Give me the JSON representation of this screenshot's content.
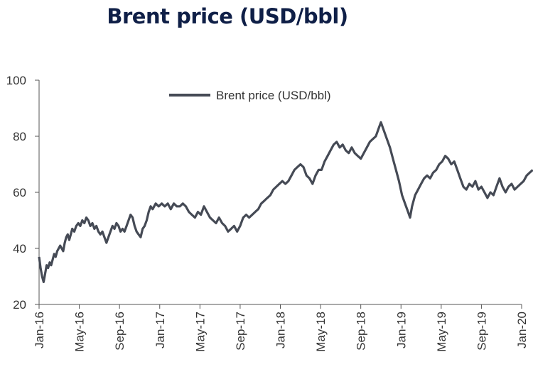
{
  "chart_data": {
    "type": "line",
    "title": "Brent price (USD/bbl)",
    "ylim": [
      20,
      100
    ],
    "yticks": [
      20,
      40,
      60,
      80,
      100
    ],
    "xticks": [
      "Jan-16",
      "May-16",
      "Sep-16",
      "Jan-17",
      "May-17",
      "Sep-17",
      "Jan-18",
      "May-18",
      "Sep-18",
      "Jan-19",
      "May-19",
      "Sep-19",
      "Jan-20"
    ],
    "legend_position": "top-center",
    "grid": false,
    "line_color": "#454a55",
    "series": [
      {
        "name": "Brent price (USD/bbl)",
        "x_unit": "months since Jan-16",
        "points": [
          [
            0.0,
            37
          ],
          [
            0.15,
            33
          ],
          [
            0.3,
            30
          ],
          [
            0.45,
            28
          ],
          [
            0.6,
            31
          ],
          [
            0.75,
            34
          ],
          [
            0.9,
            33
          ],
          [
            1.05,
            35
          ],
          [
            1.2,
            34
          ],
          [
            1.35,
            36
          ],
          [
            1.5,
            38
          ],
          [
            1.65,
            37
          ],
          [
            1.8,
            39
          ],
          [
            1.95,
            40
          ],
          [
            2.1,
            41
          ],
          [
            2.25,
            40
          ],
          [
            2.4,
            39
          ],
          [
            2.55,
            42
          ],
          [
            2.7,
            44
          ],
          [
            2.85,
            45
          ],
          [
            3.0,
            43
          ],
          [
            3.15,
            45
          ],
          [
            3.3,
            47
          ],
          [
            3.5,
            46
          ],
          [
            3.7,
            48
          ],
          [
            3.9,
            49
          ],
          [
            4.1,
            48
          ],
          [
            4.3,
            50
          ],
          [
            4.5,
            49
          ],
          [
            4.7,
            51
          ],
          [
            4.9,
            50
          ],
          [
            5.1,
            48
          ],
          [
            5.3,
            49
          ],
          [
            5.5,
            47
          ],
          [
            5.7,
            48
          ],
          [
            5.9,
            46
          ],
          [
            6.1,
            45
          ],
          [
            6.3,
            46
          ],
          [
            6.5,
            44
          ],
          [
            6.7,
            42
          ],
          [
            6.9,
            44
          ],
          [
            7.1,
            46
          ],
          [
            7.3,
            48
          ],
          [
            7.5,
            47
          ],
          [
            7.7,
            49
          ],
          [
            7.9,
            48
          ],
          [
            8.1,
            46
          ],
          [
            8.3,
            47
          ],
          [
            8.5,
            46
          ],
          [
            8.7,
            48
          ],
          [
            8.9,
            50
          ],
          [
            9.1,
            52
          ],
          [
            9.3,
            51
          ],
          [
            9.5,
            48
          ],
          [
            9.7,
            46
          ],
          [
            9.9,
            45
          ],
          [
            10.1,
            44
          ],
          [
            10.3,
            47
          ],
          [
            10.5,
            48
          ],
          [
            10.7,
            50
          ],
          [
            10.9,
            53
          ],
          [
            11.1,
            55
          ],
          [
            11.3,
            54
          ],
          [
            11.6,
            56
          ],
          [
            11.9,
            55
          ],
          [
            12.2,
            56
          ],
          [
            12.5,
            55
          ],
          [
            12.8,
            56
          ],
          [
            13.1,
            54
          ],
          [
            13.4,
            56
          ],
          [
            13.7,
            55
          ],
          [
            14.0,
            55
          ],
          [
            14.3,
            56
          ],
          [
            14.6,
            55
          ],
          [
            14.9,
            53
          ],
          [
            15.2,
            52
          ],
          [
            15.5,
            51
          ],
          [
            15.8,
            53
          ],
          [
            16.1,
            52
          ],
          [
            16.4,
            55
          ],
          [
            16.7,
            53
          ],
          [
            17.0,
            51
          ],
          [
            17.3,
            50
          ],
          [
            17.6,
            49
          ],
          [
            17.9,
            51
          ],
          [
            18.2,
            49
          ],
          [
            18.5,
            48
          ],
          [
            18.8,
            46
          ],
          [
            19.1,
            47
          ],
          [
            19.4,
            48
          ],
          [
            19.7,
            46
          ],
          [
            20.0,
            48
          ],
          [
            20.3,
            51
          ],
          [
            20.6,
            52
          ],
          [
            20.9,
            51
          ],
          [
            21.2,
            52
          ],
          [
            21.5,
            53
          ],
          [
            21.8,
            54
          ],
          [
            22.1,
            56
          ],
          [
            22.4,
            57
          ],
          [
            22.7,
            58
          ],
          [
            23.0,
            59
          ],
          [
            23.3,
            61
          ],
          [
            23.6,
            62
          ],
          [
            23.9,
            63
          ],
          [
            24.2,
            64
          ],
          [
            24.5,
            63
          ],
          [
            24.8,
            64
          ],
          [
            25.1,
            66
          ],
          [
            25.4,
            68
          ],
          [
            25.7,
            69
          ],
          [
            26.0,
            70
          ],
          [
            26.3,
            69
          ],
          [
            26.6,
            66
          ],
          [
            26.9,
            65
          ],
          [
            27.2,
            63
          ],
          [
            27.5,
            66
          ],
          [
            27.8,
            68
          ],
          [
            28.1,
            68
          ],
          [
            28.4,
            71
          ],
          [
            28.7,
            73
          ],
          [
            29.0,
            75
          ],
          [
            29.3,
            77
          ],
          [
            29.6,
            78
          ],
          [
            29.9,
            76
          ],
          [
            30.2,
            77
          ],
          [
            30.5,
            75
          ],
          [
            30.8,
            74
          ],
          [
            31.1,
            76
          ],
          [
            31.4,
            74
          ],
          [
            31.7,
            73
          ],
          [
            32.0,
            72
          ],
          [
            32.3,
            74
          ],
          [
            32.6,
            76
          ],
          [
            32.9,
            78
          ],
          [
            33.2,
            79
          ],
          [
            33.5,
            80
          ],
          [
            33.8,
            83
          ],
          [
            34.0,
            85
          ],
          [
            34.3,
            82
          ],
          [
            34.6,
            79
          ],
          [
            34.9,
            76
          ],
          [
            35.2,
            72
          ],
          [
            35.5,
            68
          ],
          [
            35.8,
            64
          ],
          [
            36.1,
            59
          ],
          [
            36.4,
            56
          ],
          [
            36.7,
            53
          ],
          [
            36.9,
            51
          ],
          [
            37.1,
            55
          ],
          [
            37.4,
            59
          ],
          [
            37.7,
            61
          ],
          [
            38.0,
            63
          ],
          [
            38.3,
            65
          ],
          [
            38.6,
            66
          ],
          [
            38.9,
            65
          ],
          [
            39.2,
            67
          ],
          [
            39.5,
            68
          ],
          [
            39.8,
            70
          ],
          [
            40.1,
            71
          ],
          [
            40.4,
            73
          ],
          [
            40.7,
            72
          ],
          [
            41.0,
            70
          ],
          [
            41.3,
            71
          ],
          [
            41.6,
            68
          ],
          [
            41.9,
            65
          ],
          [
            42.2,
            62
          ],
          [
            42.5,
            61
          ],
          [
            42.8,
            63
          ],
          [
            43.1,
            62
          ],
          [
            43.4,
            64
          ],
          [
            43.7,
            61
          ],
          [
            44.0,
            62
          ],
          [
            44.3,
            60
          ],
          [
            44.6,
            58
          ],
          [
            44.9,
            60
          ],
          [
            45.2,
            59
          ],
          [
            45.5,
            62
          ],
          [
            45.8,
            65
          ],
          [
            46.1,
            62
          ],
          [
            46.4,
            60
          ],
          [
            46.7,
            62
          ],
          [
            47.0,
            63
          ],
          [
            47.3,
            61
          ],
          [
            47.6,
            62
          ],
          [
            47.9,
            63
          ],
          [
            48.2,
            64
          ],
          [
            48.5,
            66
          ],
          [
            48.8,
            67
          ],
          [
            49.1,
            68
          ]
        ]
      }
    ]
  }
}
